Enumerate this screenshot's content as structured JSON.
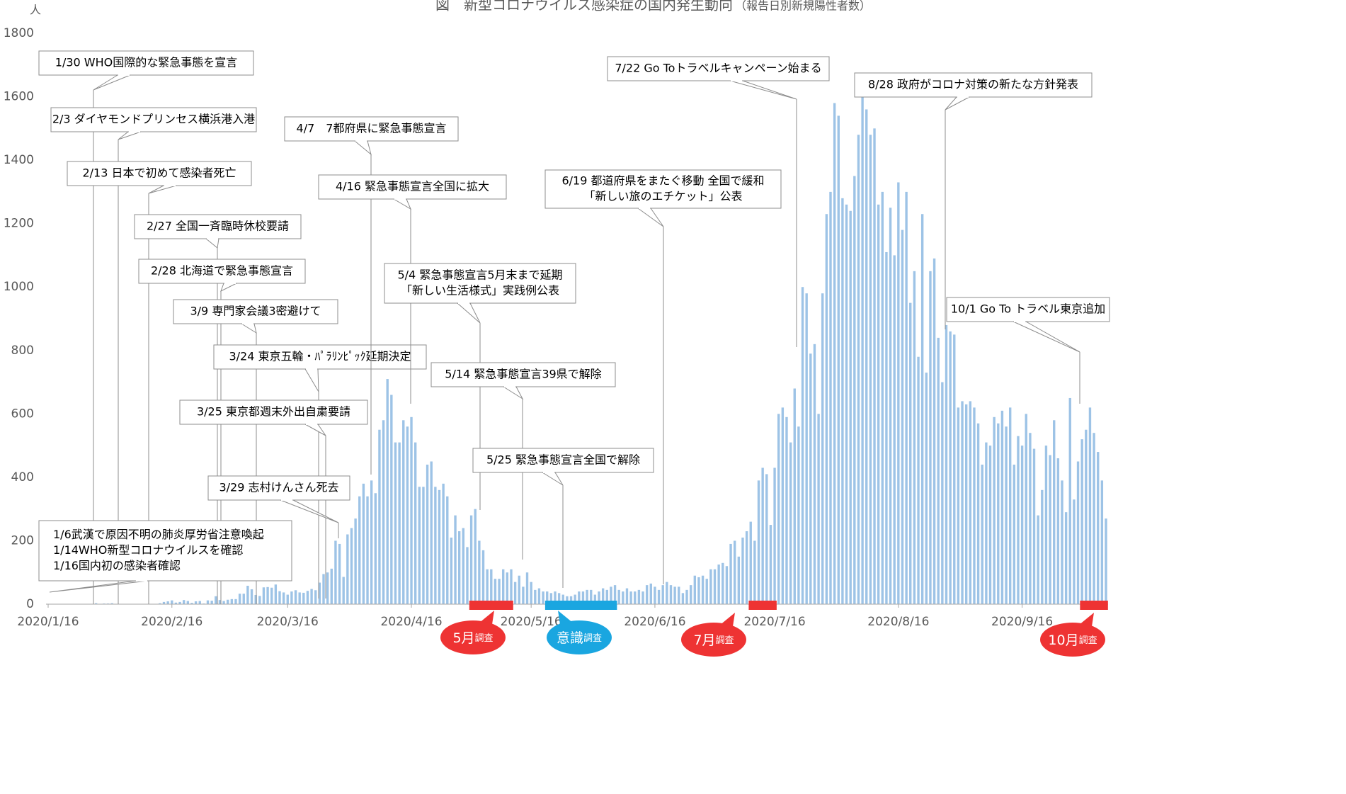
{
  "chart_data": {
    "type": "bar",
    "title": "図　新型コロナウイルス感染症の国内発生動向",
    "subtitle": "（報告日別新規陽性者数）",
    "y_unit": "人",
    "color": "#9dc3e6",
    "ylim": [
      0,
      1800
    ],
    "yticks": [
      0,
      200,
      400,
      600,
      800,
      1000,
      1200,
      1400,
      1600,
      1800
    ],
    "xlim": [
      "2020/1/16",
      "2020/10/7"
    ],
    "xticks": [
      "2020/1/16",
      "2020/2/16",
      "2020/3/16",
      "2020/4/16",
      "2020/5/16",
      "2020/6/16",
      "2020/7/16",
      "2020/8/16",
      "2020/9/16"
    ],
    "x": [
      "2020/1/16",
      "2020/1/17",
      "2020/1/18",
      "2020/1/19",
      "2020/1/20",
      "2020/1/21",
      "2020/1/22",
      "2020/1/23",
      "2020/1/24",
      "2020/1/25",
      "2020/1/26",
      "2020/1/27",
      "2020/1/28",
      "2020/1/29",
      "2020/1/30",
      "2020/1/31",
      "2020/2/1",
      "2020/2/2",
      "2020/2/3",
      "2020/2/4",
      "2020/2/5",
      "2020/2/6",
      "2020/2/7",
      "2020/2/8",
      "2020/2/9",
      "2020/2/10",
      "2020/2/11",
      "2020/2/12",
      "2020/2/13",
      "2020/2/14",
      "2020/2/15",
      "2020/2/16",
      "2020/2/17",
      "2020/2/18",
      "2020/2/19",
      "2020/2/20",
      "2020/2/21",
      "2020/2/22",
      "2020/2/23",
      "2020/2/24",
      "2020/2/25",
      "2020/2/26",
      "2020/2/27",
      "2020/2/28",
      "2020/2/29",
      "2020/3/1",
      "2020/3/2",
      "2020/3/3",
      "2020/3/4",
      "2020/3/5",
      "2020/3/6",
      "2020/3/7",
      "2020/3/8",
      "2020/3/9",
      "2020/3/10",
      "2020/3/11",
      "2020/3/12",
      "2020/3/13",
      "2020/3/14",
      "2020/3/15",
      "2020/3/16",
      "2020/3/17",
      "2020/3/18",
      "2020/3/19",
      "2020/3/20",
      "2020/3/21",
      "2020/3/22",
      "2020/3/23",
      "2020/3/24",
      "2020/3/25",
      "2020/3/26",
      "2020/3/27",
      "2020/3/28",
      "2020/3/29",
      "2020/3/30",
      "2020/3/31",
      "2020/4/1",
      "2020/4/2",
      "2020/4/3",
      "2020/4/4",
      "2020/4/5",
      "2020/4/6",
      "2020/4/7",
      "2020/4/8",
      "2020/4/9",
      "2020/4/10",
      "2020/4/11",
      "2020/4/12",
      "2020/4/13",
      "2020/4/14",
      "2020/4/15",
      "2020/4/16",
      "2020/4/17",
      "2020/4/18",
      "2020/4/19",
      "2020/4/20",
      "2020/4/21",
      "2020/4/22",
      "2020/4/23",
      "2020/4/24",
      "2020/4/25",
      "2020/4/26",
      "2020/4/27",
      "2020/4/28",
      "2020/4/29",
      "2020/4/30",
      "2020/5/1",
      "2020/5/2",
      "2020/5/3",
      "2020/5/4",
      "2020/5/5",
      "2020/5/6",
      "2020/5/7",
      "2020/5/8",
      "2020/5/9",
      "2020/5/10",
      "2020/5/11",
      "2020/5/12",
      "2020/5/13",
      "2020/5/14",
      "2020/5/15",
      "2020/5/16",
      "2020/5/17",
      "2020/5/18",
      "2020/5/19",
      "2020/5/20",
      "2020/5/21",
      "2020/5/22",
      "2020/5/23",
      "2020/5/24",
      "2020/5/25",
      "2020/5/26",
      "2020/5/27",
      "2020/5/28",
      "2020/5/29",
      "2020/5/30",
      "2020/5/31",
      "2020/6/1",
      "2020/6/2",
      "2020/6/3",
      "2020/6/4",
      "2020/6/5",
      "2020/6/6",
      "2020/6/7",
      "2020/6/8",
      "2020/6/9",
      "2020/6/10",
      "2020/6/11",
      "2020/6/12",
      "2020/6/13",
      "2020/6/14",
      "2020/6/15",
      "2020/6/16",
      "2020/6/17",
      "2020/6/18",
      "2020/6/19",
      "2020/6/20",
      "2020/6/21",
      "2020/6/22",
      "2020/6/23",
      "2020/6/24",
      "2020/6/25",
      "2020/6/26",
      "2020/6/27",
      "2020/6/28",
      "2020/6/29",
      "2020/6/30",
      "2020/7/1",
      "2020/7/2",
      "2020/7/3",
      "2020/7/4",
      "2020/7/5",
      "2020/7/6",
      "2020/7/7",
      "2020/7/8",
      "2020/7/9",
      "2020/7/10",
      "2020/7/11",
      "2020/7/12",
      "2020/7/13",
      "2020/7/14",
      "2020/7/15",
      "2020/7/16",
      "2020/7/17",
      "2020/7/18",
      "2020/7/19",
      "2020/7/20",
      "2020/7/21",
      "2020/7/22",
      "2020/7/23",
      "2020/7/24",
      "2020/7/25",
      "2020/7/26",
      "2020/7/27",
      "2020/7/28",
      "2020/7/29",
      "2020/7/30",
      "2020/7/31",
      "2020/8/1",
      "2020/8/2",
      "2020/8/3",
      "2020/8/4",
      "2020/8/5",
      "2020/8/6",
      "2020/8/7",
      "2020/8/8",
      "2020/8/9",
      "2020/8/10",
      "2020/8/11",
      "2020/8/12",
      "2020/8/13",
      "2020/8/14",
      "2020/8/15",
      "2020/8/16",
      "2020/8/17",
      "2020/8/18",
      "2020/8/19",
      "2020/8/20",
      "2020/8/21",
      "2020/8/22",
      "2020/8/23",
      "2020/8/24",
      "2020/8/25",
      "2020/8/26",
      "2020/8/27",
      "2020/8/28",
      "2020/8/29",
      "2020/8/30",
      "2020/8/31",
      "2020/9/1",
      "2020/9/2",
      "2020/9/3",
      "2020/9/4",
      "2020/9/5",
      "2020/9/6",
      "2020/9/7",
      "2020/9/8",
      "2020/9/9",
      "2020/9/10",
      "2020/9/11",
      "2020/9/12",
      "2020/9/13",
      "2020/9/14",
      "2020/9/15",
      "2020/9/16",
      "2020/9/17",
      "2020/9/18",
      "2020/9/19",
      "2020/9/20",
      "2020/9/21",
      "2020/9/22",
      "2020/9/23",
      "2020/9/24",
      "2020/9/25",
      "2020/9/26",
      "2020/9/27",
      "2020/9/28",
      "2020/9/29",
      "2020/9/30",
      "2020/10/1",
      "2020/10/2",
      "2020/10/3",
      "2020/10/4",
      "2020/10/5",
      "2020/10/6",
      "2020/10/7"
    ],
    "values": [
      1,
      0,
      0,
      0,
      0,
      0,
      0,
      1,
      1,
      0,
      1,
      1,
      3,
      0,
      2,
      2,
      3,
      0,
      0,
      0,
      0,
      1,
      0,
      0,
      0,
      0,
      0,
      1,
      3,
      7,
      9,
      12,
      5,
      7,
      13,
      10,
      4,
      9,
      10,
      2,
      12,
      11,
      25,
      13,
      10,
      14,
      16,
      16,
      33,
      33,
      58,
      47,
      29,
      26,
      53,
      54,
      52,
      62,
      41,
      37,
      30,
      40,
      44,
      37,
      36,
      42,
      48,
      44,
      68,
      95,
      100,
      112,
      200,
      190,
      86,
      220,
      240,
      270,
      340,
      380,
      340,
      390,
      350,
      550,
      580,
      710,
      660,
      510,
      510,
      580,
      560,
      590,
      510,
      370,
      370,
      440,
      450,
      370,
      360,
      380,
      340,
      210,
      280,
      230,
      240,
      180,
      280,
      300,
      200,
      170,
      110,
      110,
      80,
      80,
      110,
      100,
      110,
      70,
      90,
      55,
      100,
      70,
      45,
      50,
      40,
      40,
      35,
      40,
      35,
      30,
      25,
      25,
      30,
      40,
      40,
      45,
      45,
      30,
      40,
      50,
      45,
      55,
      60,
      45,
      40,
      50,
      40,
      40,
      45,
      40,
      60,
      65,
      55,
      45,
      60,
      70,
      60,
      55,
      55,
      35,
      45,
      60,
      90,
      85,
      90,
      80,
      110,
      110,
      125,
      130,
      120,
      190,
      200,
      150,
      210,
      230,
      260,
      200,
      390,
      430,
      410,
      250,
      430,
      600,
      620,
      590,
      510,
      680,
      560,
      1000,
      980,
      790,
      820,
      600,
      980,
      1230,
      1300,
      1580,
      1540,
      1280,
      1260,
      1240,
      1350,
      1480,
      1600,
      1560,
      1480,
      1500,
      1260,
      1300,
      1110,
      1250,
      1100,
      1330,
      1180,
      1300,
      950,
      1050,
      780,
      1230,
      730,
      1050,
      1090,
      840,
      700,
      880,
      860,
      850,
      620,
      640,
      630,
      640,
      620,
      570,
      440,
      510,
      500,
      590,
      570,
      610,
      560,
      620,
      440,
      530,
      500,
      600,
      540,
      490,
      280,
      360,
      500,
      470,
      580,
      460,
      390,
      290,
      650,
      330,
      450,
      520,
      550,
      620,
      540,
      480,
      390,
      270
    ],
    "annotations": [
      {
        "lines": [
          "1/30 WHO国際的な緊急事態を宣言"
        ]
      },
      {
        "lines": [
          "2/3 ダイヤモンドプリンセス横浜港入港"
        ]
      },
      {
        "lines": [
          "2/13 日本で初めて感染者死亡"
        ]
      },
      {
        "lines": [
          "2/27 全国一斉臨時休校要請"
        ]
      },
      {
        "lines": [
          "2/28 北海道で緊急事態宣言"
        ]
      },
      {
        "lines": [
          "3/9 専門家会議3密避けて"
        ]
      },
      {
        "lines": [
          "3/24 東京五輪・ﾊﾟﾗﾘﾝﾋﾟｯｸ延期決定"
        ]
      },
      {
        "lines": [
          "3/25 東京都週末外出自粛要請"
        ]
      },
      {
        "lines": [
          "3/29 志村けんさん死去"
        ]
      },
      {
        "lines": [
          "4/7　7都府県に緊急事態宣言"
        ]
      },
      {
        "lines": [
          "4/16 緊急事態宣言全国に拡大"
        ]
      },
      {
        "lines": [
          "5/4 緊急事態宣言5月末まで延期",
          "「新しい生活様式」実践例公表"
        ]
      },
      {
        "lines": [
          "5/14 緊急事態宣言39県で解除"
        ]
      },
      {
        "lines": [
          "5/25 緊急事態宣言全国で解除"
        ]
      },
      {
        "lines": [
          "6/19 都道府県をまたぐ移動 全国で緩和",
          "「新しい旅のエチケット」公表"
        ]
      },
      {
        "lines": [
          "7/22 Go Toトラベルキャンペーン始まる"
        ]
      },
      {
        "lines": [
          "8/28 政府がコロナ対策の新たな方針発表"
        ]
      },
      {
        "lines": [
          "10/1 Go To トラベル東京追加"
        ]
      },
      {
        "lines": [
          "1/6武漢で原因不明の肺炎厚労省注意喚起",
          "1/14WHO新型コロナウイルスを確認",
          "1/16国内初の感染者確認"
        ]
      }
    ],
    "surveys": [
      {
        "label": "5月",
        "note": "調査",
        "start": "2020/5/1",
        "end": "2020/5/11",
        "color": "#ee3333"
      },
      {
        "label": "意識",
        "note": "調査",
        "start": "2020/5/20",
        "end": "2020/6/6",
        "color": "#1aa6e0"
      },
      {
        "label": "7月",
        "note": "調査",
        "start": "2020/7/10",
        "end": "2020/7/16",
        "color": "#ee3333"
      },
      {
        "label": "10月",
        "note": "調査",
        "start": "2020/10/1",
        "end": "2020/10/7",
        "color": "#ee3333"
      }
    ]
  }
}
